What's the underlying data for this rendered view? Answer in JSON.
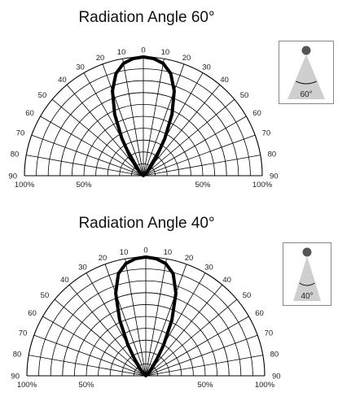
{
  "chart_data": [
    {
      "type": "polar",
      "title": "Radiation Angle 60°",
      "angle_ticks_left": [
        "90",
        "80",
        "70",
        "60",
        "50",
        "40",
        "30",
        "20",
        "10"
      ],
      "angle_zero": "0",
      "angle_ticks_right": [
        "10",
        "20",
        "30",
        "40",
        "50",
        "60",
        "70",
        "80",
        "90"
      ],
      "radial_labels": [
        "100%",
        "50%",
        "50%",
        "100%"
      ],
      "beam_angle_label": "60°",
      "beam_angle_deg": 60,
      "series": [
        {
          "angles_deg": [
            -50,
            -45,
            -40,
            -35,
            -30,
            -25,
            -20,
            -15,
            -10,
            -5,
            0,
            5,
            10,
            15,
            20,
            25,
            30,
            35,
            40,
            45,
            50
          ],
          "intensity_pct": [
            2,
            4,
            9,
            19,
            36,
            57,
            76,
            89,
            96,
            99,
            100,
            99,
            96,
            89,
            76,
            57,
            36,
            19,
            9,
            4,
            2
          ]
        }
      ]
    },
    {
      "type": "polar",
      "title": "Radiation Angle 40°",
      "angle_ticks_left": [
        "90",
        "80",
        "70",
        "60",
        "50",
        "40",
        "30",
        "20",
        "10"
      ],
      "angle_zero": "0",
      "angle_ticks_right": [
        "10",
        "20",
        "30",
        "40",
        "50",
        "60",
        "70",
        "80",
        "90"
      ],
      "radial_labels": [
        "100%",
        "50%",
        "50%",
        "100%"
      ],
      "beam_angle_label": "40°",
      "beam_angle_deg": 40,
      "series": [
        {
          "angles_deg": [
            -45,
            -40,
            -35,
            -30,
            -25,
            -20,
            -15,
            -10,
            -5,
            0,
            5,
            10,
            15,
            20,
            25,
            30,
            35,
            40,
            45
          ],
          "intensity_pct": [
            3,
            7,
            15,
            30,
            52,
            74,
            89,
            96,
            99,
            100,
            99,
            96,
            89,
            74,
            52,
            30,
            15,
            7,
            3
          ]
        }
      ]
    }
  ]
}
